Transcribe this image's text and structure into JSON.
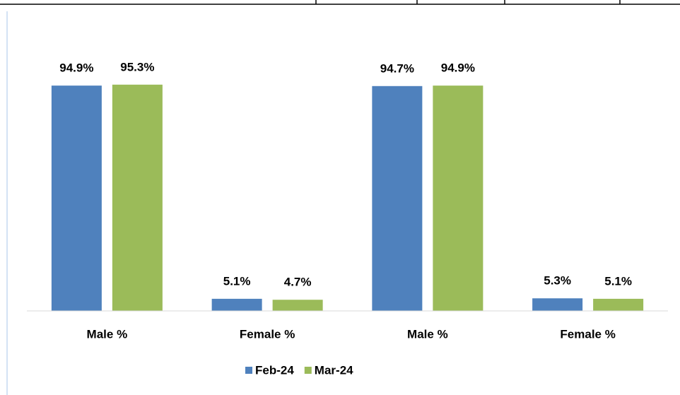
{
  "chart_data": {
    "type": "bar",
    "categories": [
      "Male %",
      "Female %",
      "Male %",
      "Female %"
    ],
    "series": [
      {
        "name": "Feb-24",
        "color": "#4f81bd",
        "values": [
          94.9,
          5.1,
          94.7,
          5.3
        ],
        "value_labels": [
          "94.9%",
          "5.1%",
          "94.7%",
          "5.3%"
        ]
      },
      {
        "name": "Mar-24",
        "color": "#9bbb59",
        "values": [
          95.3,
          4.7,
          94.9,
          5.1
        ],
        "value_labels": [
          "95.3%",
          "4.7%",
          "94.9%",
          "5.1%"
        ]
      }
    ],
    "ylim": [
      0,
      100
    ],
    "legend": "bottom"
  }
}
